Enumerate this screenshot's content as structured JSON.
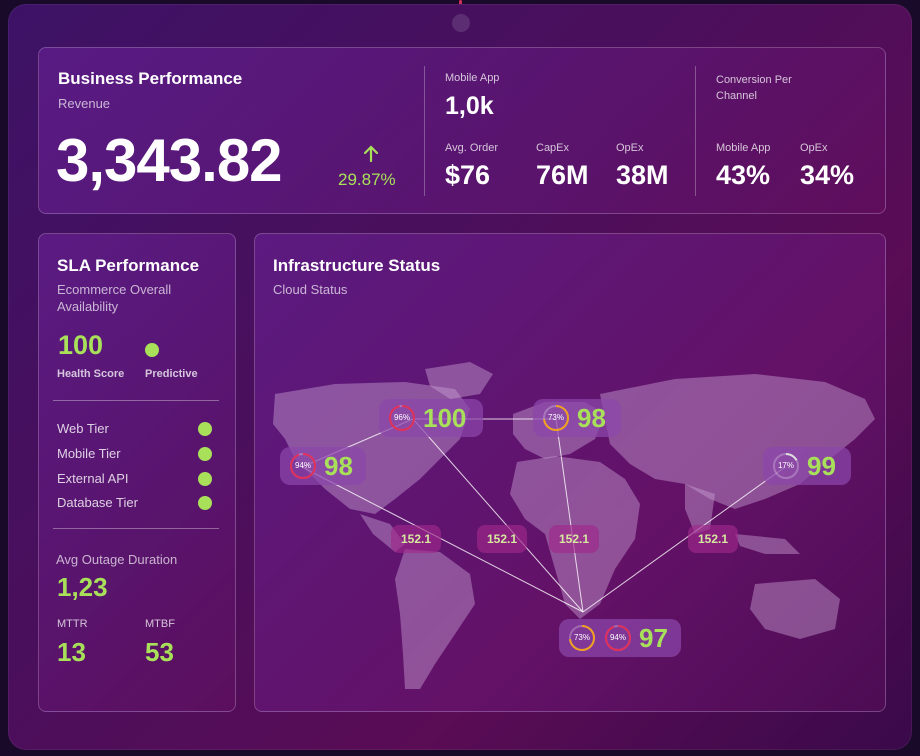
{
  "business": {
    "title": "Business Performance",
    "subtitle": "Revenue",
    "revenue": "3,343.82",
    "change": "29.87%",
    "mobile_app_label": "Mobile App",
    "mobile_app_value": "1,0k",
    "avg_order_label": "Avg. Order",
    "avg_order_value": "$76",
    "capex_label": "CapEx",
    "capex_value": "76M",
    "opex_label": "OpEx",
    "opex_value": "38M",
    "conversion_label": "Conversion Per Channel",
    "conv_mobile_label": "Mobile App",
    "conv_mobile_value": "43%",
    "conv_opex_label": "OpEx",
    "conv_opex_value": "34%"
  },
  "sla": {
    "title": "SLA Performance",
    "subtitle": "Ecommerce Overall Availability",
    "health_value": "100",
    "health_label": "Health Score",
    "predictive_label": "Predictive",
    "tiers": [
      "Web Tier",
      "Mobile Tier",
      "External API",
      "Database Tier"
    ],
    "outage_label": "Avg Outage Duration",
    "outage_value": "1,23",
    "mttr_label": "MTTR",
    "mttr_value": "13",
    "mtbf_label": "MTBF",
    "mtbf_value": "53"
  },
  "infra": {
    "title": "Infrastructure Status",
    "subtitle": "Cloud Status",
    "nodes": [
      {
        "gauge": "94%",
        "value": "98",
        "gauge_pct": 94,
        "gauge_color": "#e0305a"
      },
      {
        "gauge": "96%",
        "value": "100",
        "gauge_pct": 96,
        "gauge_color": "#e0305a"
      },
      {
        "gauge": "73%",
        "value": "98",
        "gauge_pct": 73,
        "gauge_color": "#f0a020"
      },
      {
        "gauge": "17%",
        "value": "99",
        "gauge_pct": 17,
        "gauge_color": "#dddddd"
      },
      {
        "gauge": "73%",
        "gauge2": "94%",
        "value": "97",
        "gauge_pct": 73,
        "gauge2_pct": 94,
        "gauge_color": "#f0a020",
        "gauge2_color": "#e0305a"
      }
    ],
    "links": [
      "152.1",
      "152.1",
      "152.1",
      "152.1"
    ]
  }
}
